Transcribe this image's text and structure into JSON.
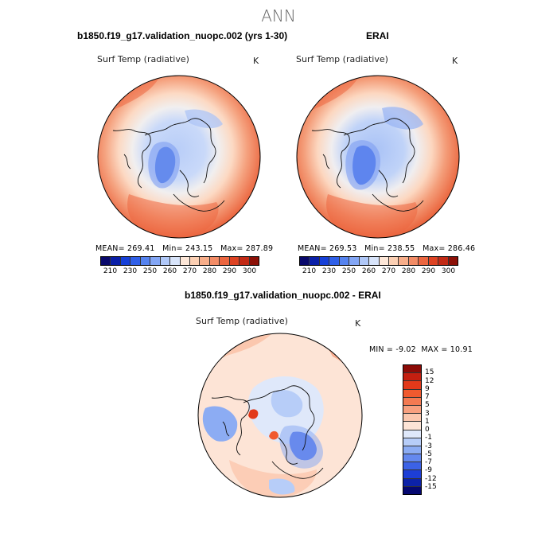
{
  "suptitle": "ANN",
  "panel1": {
    "title": "b1850.f19_g17.validation_nuopc.002 (yrs 1-30)",
    "varname": "Surf Temp (radiative)",
    "units": "K",
    "mean_label": "MEAN=",
    "mean": "269.41",
    "min_label": "Min=",
    "min": "243.15",
    "max_label": "Max=",
    "max": "287.89"
  },
  "panel2": {
    "title": "ERAI",
    "varname": "Surf Temp (radiative)",
    "units": "K",
    "mean_label": "MEAN=",
    "mean": "269.53",
    "min_label": "Min=",
    "min": "238.55",
    "max_label": "Max=",
    "max": "286.46"
  },
  "panel3": {
    "title": "b1850.f19_g17.validation_nuopc.002 - ERAI",
    "varname": "Surf Temp (radiative)",
    "units": "K",
    "min_label": "MIN =",
    "min": "-9.02",
    "max_label": "MAX =",
    "max": "10.91"
  },
  "colorbar_abs": {
    "colors": [
      "#08086b",
      "#0a1fa8",
      "#1640d8",
      "#2f5fe8",
      "#5583f0",
      "#83a6f5",
      "#b0c8f8",
      "#d8e4fa",
      "#fde7d8",
      "#fcd0b4",
      "#f8ae8a",
      "#f38c66",
      "#ec6640",
      "#de4323",
      "#c22a15",
      "#8c1007"
    ],
    "tick_labels": [
      "210",
      "230",
      "250",
      "260",
      "270",
      "280",
      "290",
      "300"
    ]
  },
  "colorbar_diff": {
    "colors_top_to_bottom": [
      "#8c0b07",
      "#c41f10",
      "#e2391a",
      "#f05a2f",
      "#f47a52",
      "#f8a07f",
      "#fbc7ae",
      "#fde4d6",
      "#dfe8fa",
      "#b7cdf8",
      "#8cacf3",
      "#6488ee",
      "#3c62e6",
      "#1d3ed6",
      "#0c22a8",
      "#050870"
    ],
    "tick_labels": [
      "15",
      "12",
      "9",
      "7",
      "5",
      "3",
      "1",
      "0",
      "-1",
      "-3",
      "-5",
      "-7",
      "-9",
      "-12",
      "-15"
    ]
  }
}
